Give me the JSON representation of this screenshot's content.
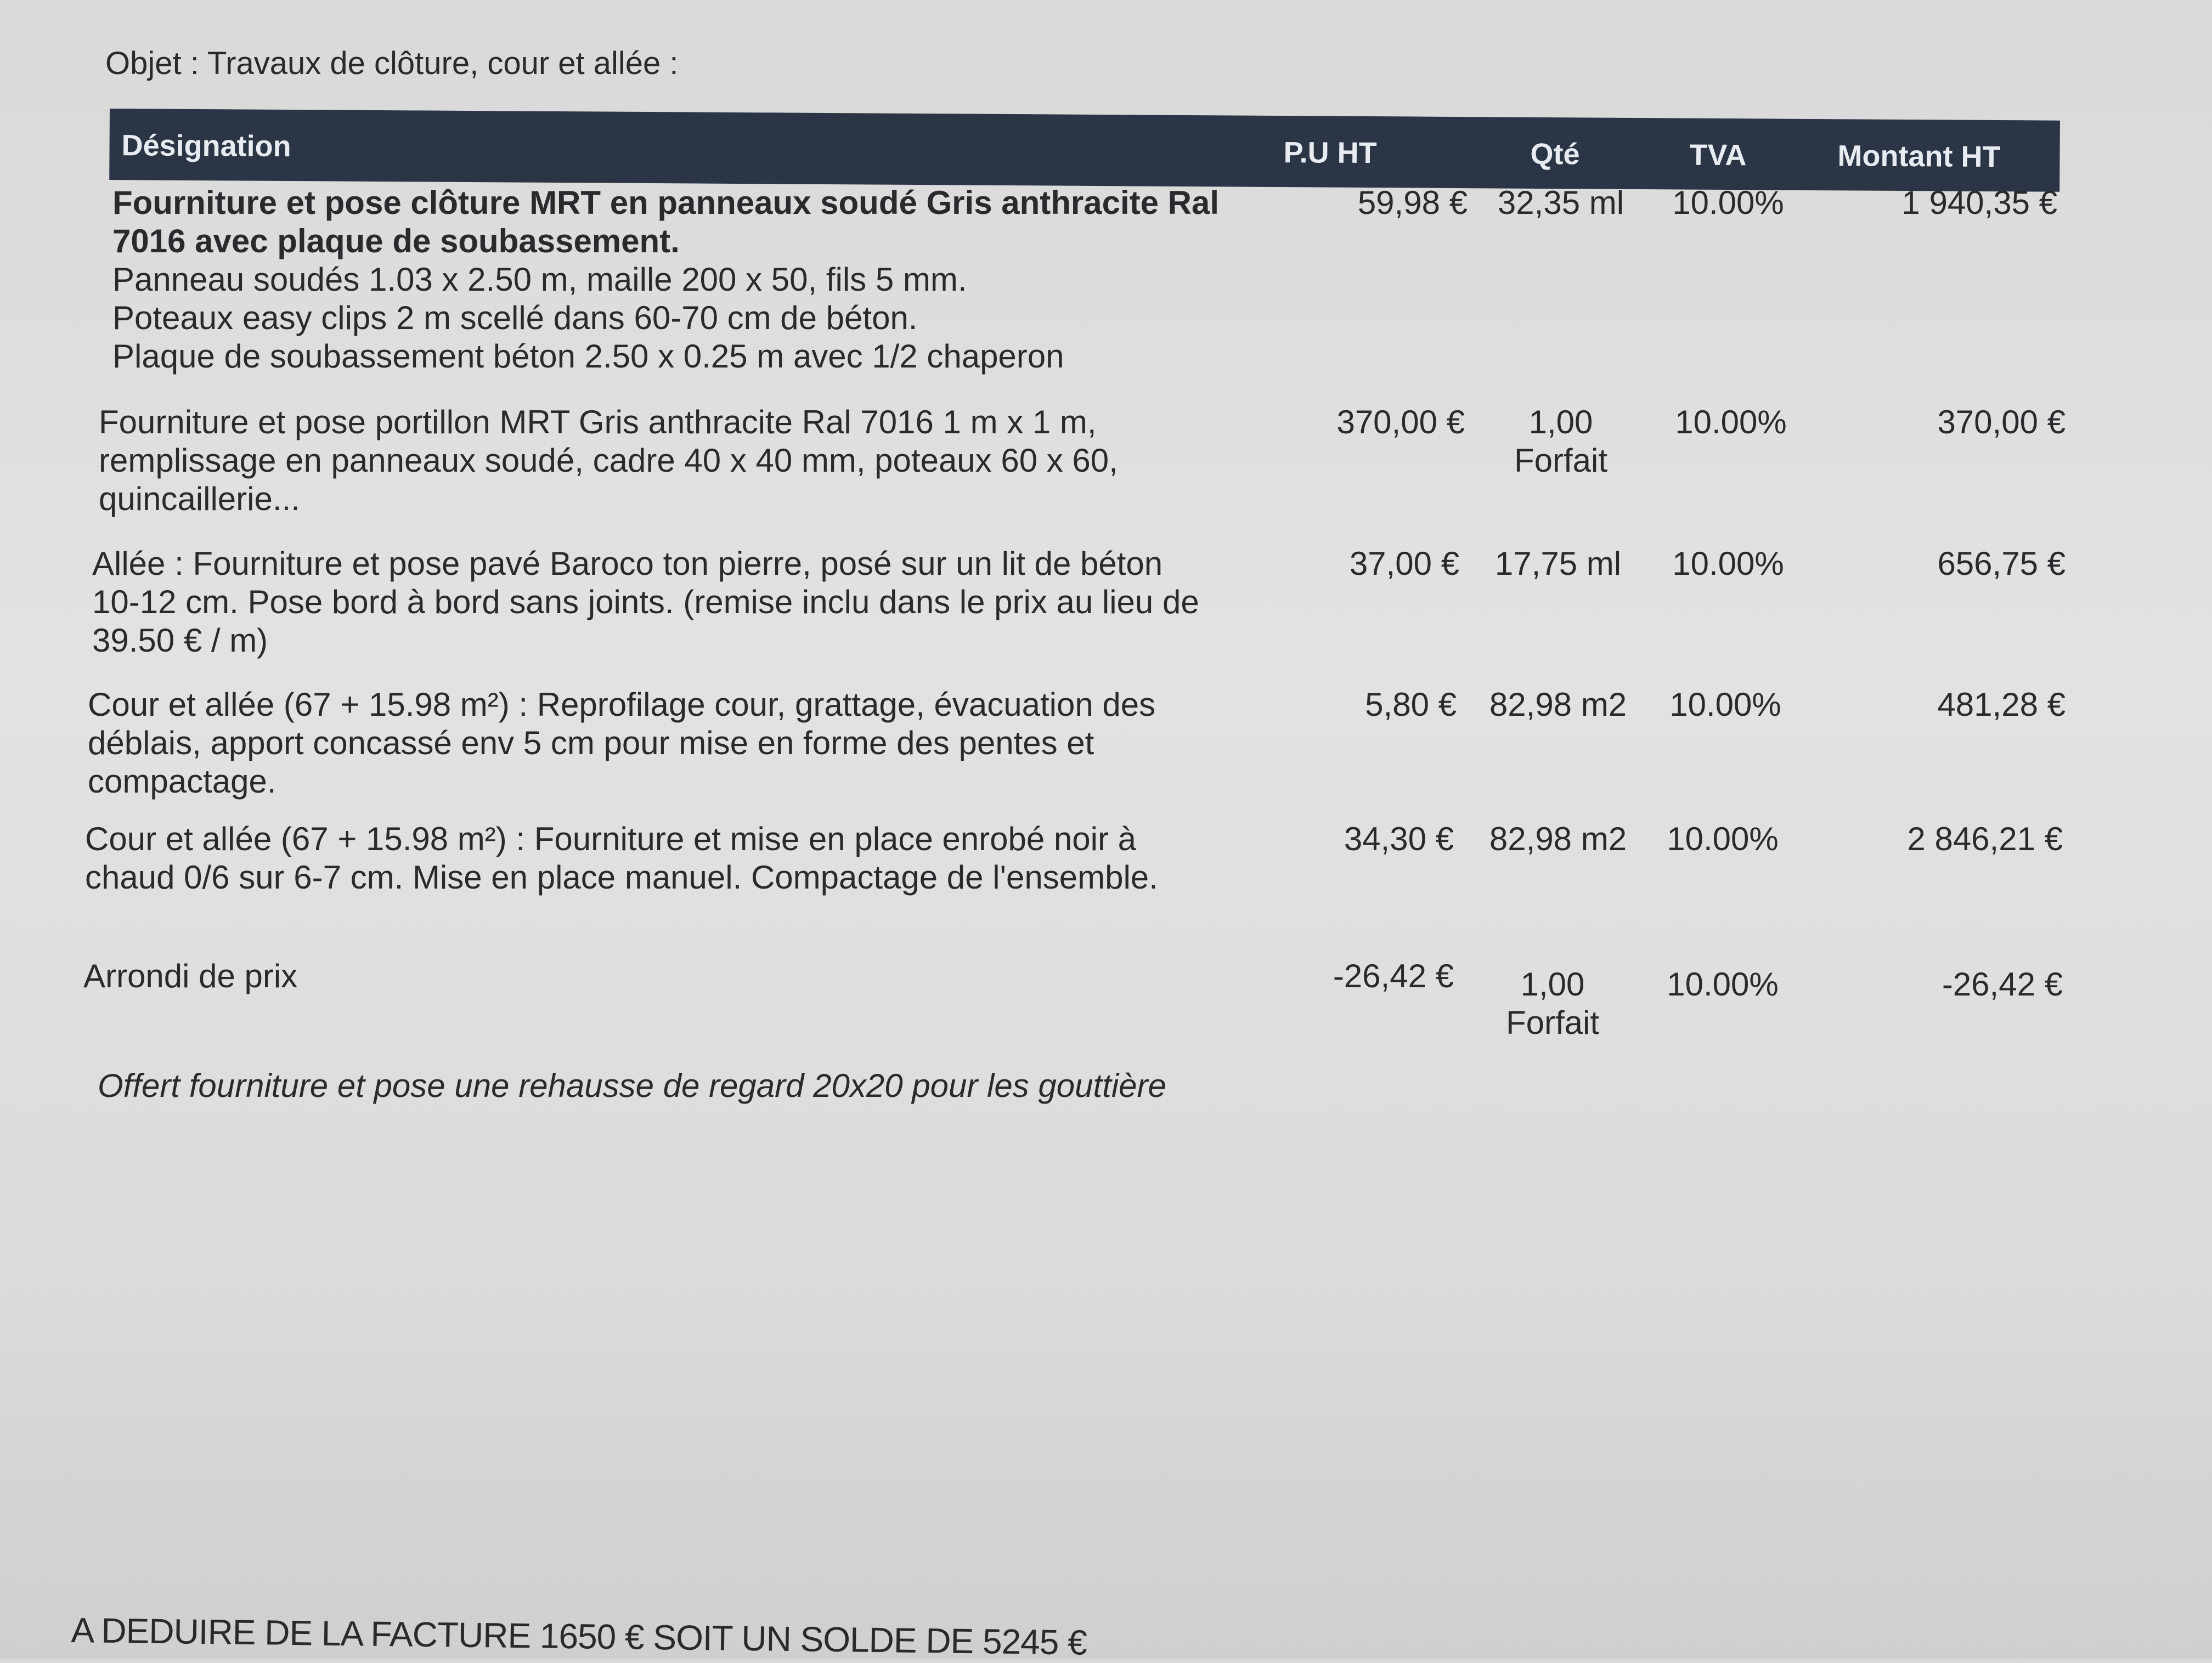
{
  "object": "Objet : Travaux de clôture, cour et allée :",
  "columns": {
    "designation": "Désignation",
    "pu": "P.U HT",
    "qte": "Qté",
    "tva": "TVA",
    "montant": "Montant HT"
  },
  "rows": [
    {
      "title": "Fourniture et pose clôture MRT en panneaux soudé Gris anthracite Ral 7016 avec plaque de soubassement.",
      "lines": [
        "Panneau soudés 1.03 x 2.50 m, maille 200 x 50, fils 5 mm.",
        "Poteaux easy clips 2 m scellé dans 60-70 cm de béton.",
        "Plaque de soubassement béton 2.50 x 0.25 m avec 1/2 chaperon"
      ],
      "pu": "59,98 €",
      "qte": "32,35 ml",
      "unit": "",
      "tva": "10.00%",
      "montant": "1 940,35 €"
    },
    {
      "text": "Fourniture et pose portillon MRT Gris anthracite Ral 7016 1 m x 1 m, remplissage en panneaux soudé, cadre 40 x 40 mm, poteaux 60 x 60, quincaillerie...",
      "pu": "370,00 €",
      "qte": "1,00",
      "unit": "Forfait",
      "tva": "10.00%",
      "montant": "370,00 €"
    },
    {
      "text": "Allée : Fourniture et pose pavé Baroco ton pierre, posé sur un lit de béton 10-12 cm. Pose bord à bord sans joints. (remise inclu dans le prix au lieu de 39.50 € / m)",
      "pu": "37,00 €",
      "qte": "17,75 ml",
      "unit": "",
      "tva": "10.00%",
      "montant": "656,75 €"
    },
    {
      "text": "Cour et allée (67 + 15.98 m²) : Reprofilage cour, grattage, évacuation des déblais, apport concassé env 5 cm pour mise en forme des pentes et compactage.",
      "pu": "5,80 €",
      "qte": "82,98 m2",
      "unit": "",
      "tva": "10.00%",
      "montant": "481,28 €"
    },
    {
      "text": "Cour et allée (67 + 15.98 m²) : Fourniture et mise en place enrobé noir à chaud 0/6 sur 6-7 cm. Mise en place manuel. Compactage de l'ensemble.",
      "pu": "34,30 €",
      "qte": "82,98 m2",
      "unit": "",
      "tva": "10.00%",
      "montant": "2 846,21 €"
    },
    {
      "text": "Arrondi de prix",
      "pu": "-26,42 €",
      "qte": "1,00",
      "unit": "Forfait",
      "tva": "10.00%",
      "montant": "-26,42 €"
    }
  ],
  "note": "Offert fourniture et pose une rehausse de regard 20x20 pour les gouttière",
  "footer": "A DEDUIRE DE LA FACTURE 1650 €  SOIT UN SOLDE DE 5245 €"
}
